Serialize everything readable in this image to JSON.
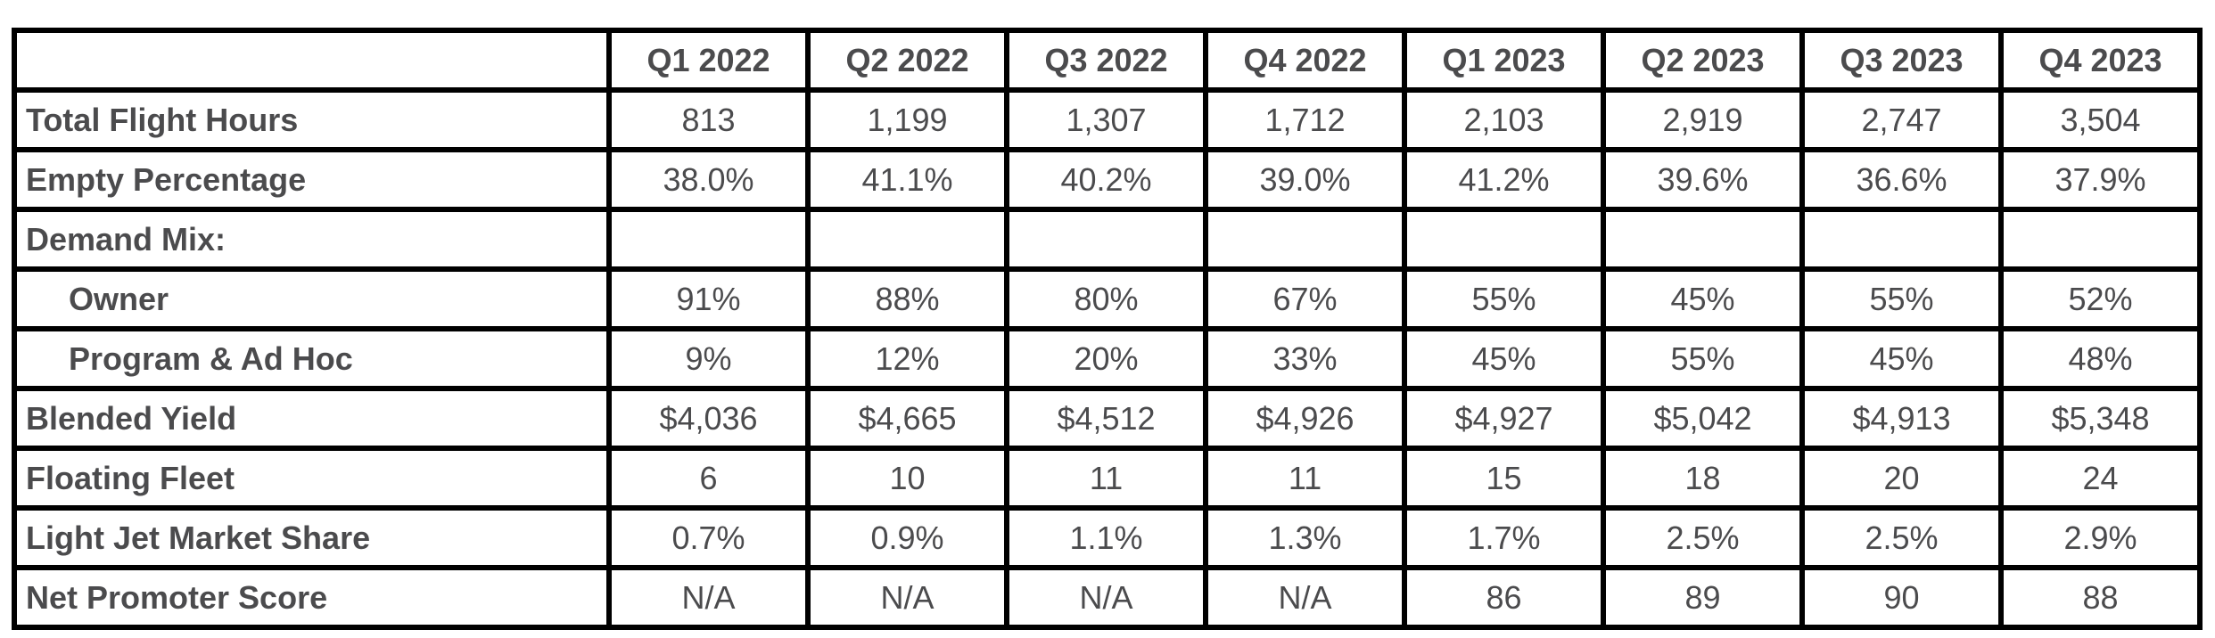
{
  "chart_data": {
    "type": "table",
    "corner_label": "",
    "columns": [
      "Q1 2022",
      "Q2 2022",
      "Q3 2022",
      "Q4 2022",
      "Q1 2023",
      "Q2 2023",
      "Q3 2023",
      "Q4 2023"
    ],
    "rows": [
      {
        "label": "Total Flight Hours",
        "indent": false,
        "values": [
          "813",
          "1,199",
          "1,307",
          "1,712",
          "2,103",
          "2,919",
          "2,747",
          "3,504"
        ]
      },
      {
        "label": "Empty Percentage",
        "indent": false,
        "values": [
          "38.0%",
          "41.1%",
          "40.2%",
          "39.0%",
          "41.2%",
          "39.6%",
          "36.6%",
          "37.9%"
        ]
      },
      {
        "label": "Demand Mix:",
        "indent": false,
        "values": [
          "",
          "",
          "",
          "",
          "",
          "",
          "",
          ""
        ]
      },
      {
        "label": "Owner",
        "indent": true,
        "values": [
          "91%",
          "88%",
          "80%",
          "67%",
          "55%",
          "45%",
          "55%",
          "52%"
        ]
      },
      {
        "label": "Program & Ad Hoc",
        "indent": true,
        "values": [
          "9%",
          "12%",
          "20%",
          "33%",
          "45%",
          "55%",
          "45%",
          "48%"
        ]
      },
      {
        "label": "Blended Yield",
        "indent": false,
        "values": [
          "$4,036",
          "$4,665",
          "$4,512",
          "$4,926",
          "$4,927",
          "$5,042",
          "$4,913",
          "$5,348"
        ]
      },
      {
        "label": "Floating Fleet",
        "indent": false,
        "values": [
          "6",
          "10",
          "11",
          "11",
          "15",
          "18",
          "20",
          "24"
        ]
      },
      {
        "label": "Light Jet Market Share",
        "indent": false,
        "values": [
          "0.7%",
          "0.9%",
          "1.1%",
          "1.3%",
          "1.7%",
          "2.5%",
          "2.5%",
          "2.9%"
        ]
      },
      {
        "label": "Net Promoter Score",
        "indent": false,
        "values": [
          "N/A",
          "N/A",
          "N/A",
          "N/A",
          "86",
          "89",
          "90",
          "88"
        ]
      }
    ],
    "colors": {
      "border": "#000000",
      "text": "#4b4b4d",
      "background": "#ffffff"
    },
    "layout": {
      "grid": "on",
      "legend": "none"
    }
  }
}
